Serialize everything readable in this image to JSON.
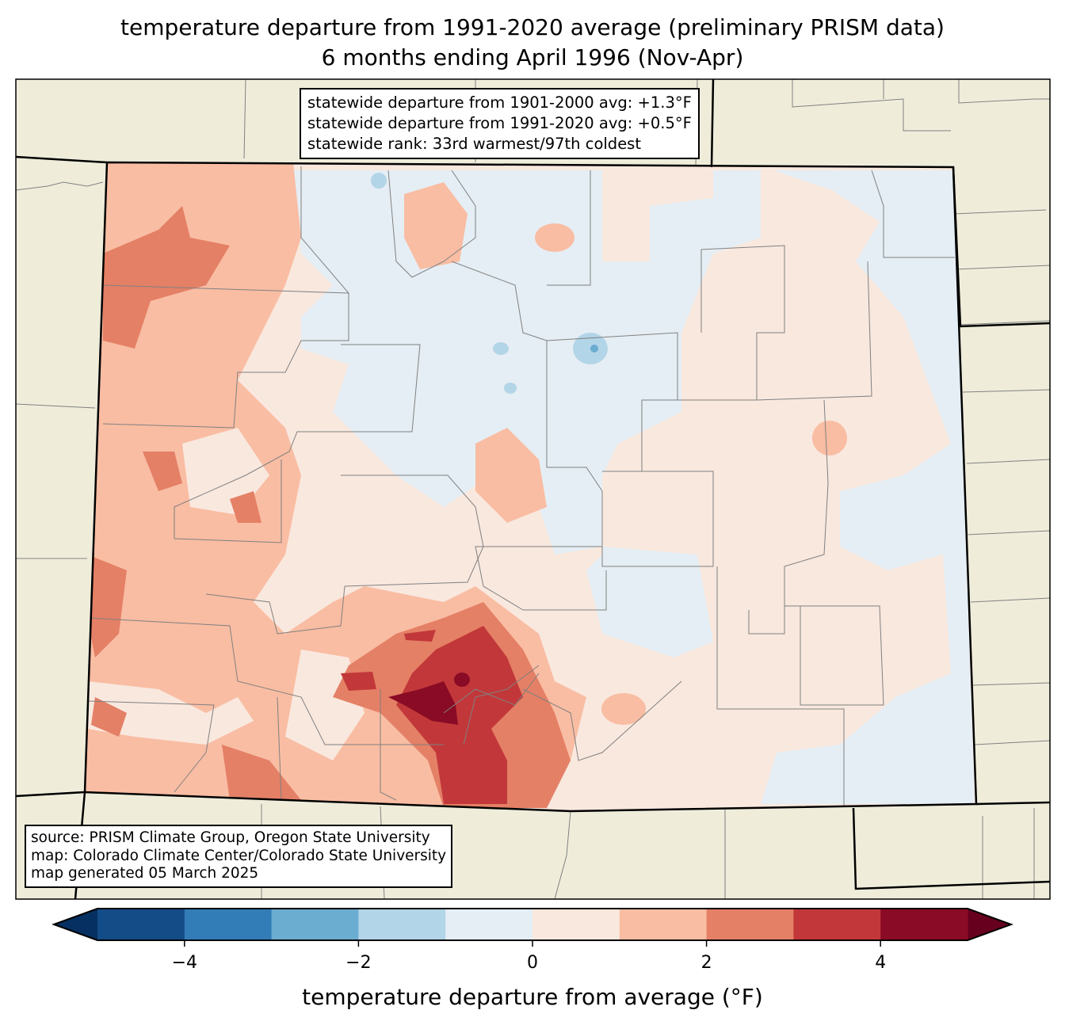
{
  "title": {
    "line1": "temperature departure from 1991-2020 average (preliminary PRISM data)",
    "line2": "6 months ending April 1996 (Nov-Apr)"
  },
  "stats": {
    "line1": "statewide departure from 1901-2000 avg: +1.3°F",
    "line2": "statewide departure from 1991-2020 avg: +0.5°F",
    "line3": "statewide rank: 33rd warmest/97th coldest"
  },
  "credits": {
    "line1": "source: PRISM Climate Group, Oregon State University",
    "line2": "map: Colorado Climate Center/Colorado State University",
    "line3": "map generated 05 March 2025"
  },
  "colorbar": {
    "label": "temperature departure from average (°F)",
    "levels": [
      -5,
      -4,
      -3,
      -2,
      -1,
      0,
      1,
      2,
      3,
      4,
      5
    ],
    "ticks": [
      "−4",
      "−2",
      "0",
      "2",
      "4"
    ],
    "colors": [
      "#134c87",
      "#327cb7",
      "#6bacd1",
      "#b2d5e7",
      "#e5eef4",
      "#f9e8de",
      "#f9bda3",
      "#e48066",
      "#c2383a",
      "#8a0b25"
    ],
    "under_color": "#053061",
    "over_color": "#67001f"
  },
  "map_colors": {
    "land": "#efedda",
    "border": "#000000",
    "county": "#808080"
  }
}
